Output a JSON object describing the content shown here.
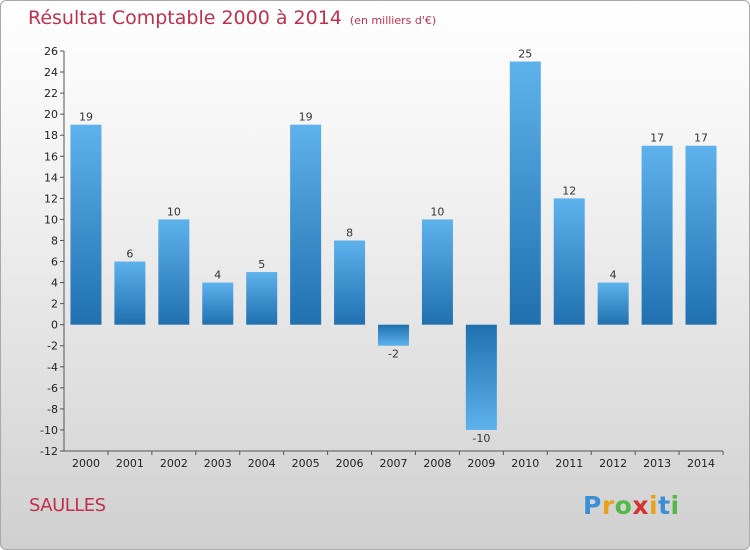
{
  "header": {
    "title": "Résultat Comptable 2000 à 2014",
    "subtitle": "(en milliers d'€)"
  },
  "footer": {
    "place": "SAULLES",
    "logo_letters": [
      "P",
      "r",
      "o",
      "x",
      "i",
      "t",
      "i"
    ],
    "logo_colors": [
      "#3b8fd6",
      "#e8a21a",
      "#56b847",
      "#d6332e",
      "#e8a21a",
      "#3b8fd6",
      "#56b847"
    ]
  },
  "chart_data": {
    "type": "bar",
    "title": "Résultat Comptable 2000 à 2014",
    "subtitle": "(en milliers d'€)",
    "xlabel": "",
    "ylabel": "",
    "categories": [
      "2000",
      "2001",
      "2002",
      "2003",
      "2004",
      "2005",
      "2006",
      "2007",
      "2008",
      "2009",
      "2010",
      "2011",
      "2012",
      "2013",
      "2014"
    ],
    "values": [
      19,
      6,
      10,
      4,
      5,
      19,
      8,
      -2,
      10,
      -10,
      25,
      12,
      4,
      17,
      17
    ],
    "data_labels": [
      "19",
      "6",
      "10",
      "4",
      "5",
      "19",
      "8",
      "-2",
      "10",
      "-10",
      "25",
      "12",
      "4",
      "17",
      "17"
    ],
    "ylim": [
      -12,
      26
    ],
    "yticks": [
      26,
      24,
      22,
      20,
      18,
      16,
      14,
      12,
      10,
      8,
      6,
      4,
      2,
      0,
      -2,
      -4,
      -6,
      -8,
      -10,
      -12
    ],
    "grid": false,
    "legend": "none",
    "colors": {
      "bar_light": "#5aaeea",
      "bar_dark": "#2374b5",
      "axis": "#555555"
    }
  }
}
